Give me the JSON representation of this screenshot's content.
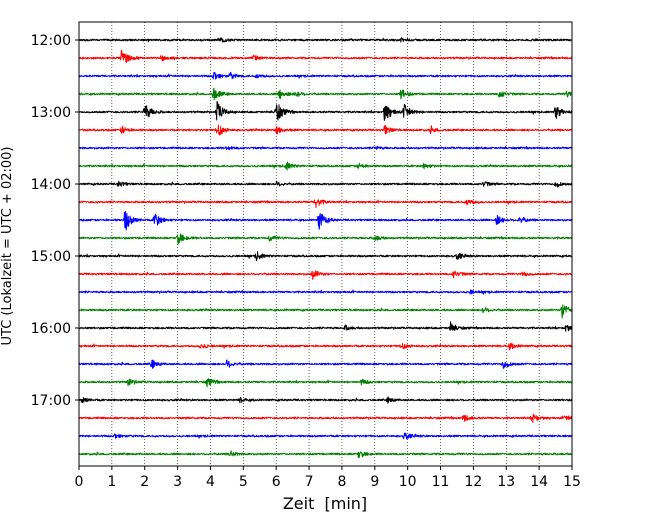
{
  "chart_data": {
    "type": "line",
    "title": "",
    "xlabel": "Zeit  [min]",
    "ylabel": "UTC (Lokalzeit = UTC + 02:00)",
    "xlim": [
      0,
      15
    ],
    "xticks": [
      0,
      1,
      2,
      3,
      4,
      5,
      6,
      7,
      8,
      9,
      10,
      11,
      12,
      13,
      14,
      15
    ],
    "yticks": [
      "12:00",
      "13:00",
      "14:00",
      "15:00",
      "16:00",
      "17:00"
    ],
    "minutes_per_row": 15,
    "start_time": "12:00",
    "row_count": 24,
    "color_cycle": [
      "#000000",
      "#ff0000",
      "#0000ff",
      "#008000"
    ],
    "grid": "vertical dotted at each minute",
    "legend": "none",
    "traces": [
      {
        "start": "12:00",
        "color": "#000000",
        "events": [
          [
            4.3,
            0.25
          ],
          [
            9.8,
            0.2
          ]
        ]
      },
      {
        "start": "12:15",
        "color": "#ff0000",
        "events": [
          [
            1.3,
            1.0
          ],
          [
            2.5,
            0.3
          ],
          [
            5.3,
            0.3
          ]
        ]
      },
      {
        "start": "12:30",
        "color": "#0000ff",
        "events": [
          [
            4.1,
            0.5
          ],
          [
            4.6,
            0.35
          ],
          [
            5.4,
            0.25
          ]
        ]
      },
      {
        "start": "12:45",
        "color": "#008000",
        "events": [
          [
            4.1,
            0.8
          ],
          [
            6.1,
            0.6
          ],
          [
            6.6,
            0.35
          ],
          [
            9.8,
            0.55
          ],
          [
            12.8,
            0.45
          ],
          [
            14.8,
            0.4
          ]
        ]
      },
      {
        "start": "13:00",
        "color": "#000000",
        "events": [
          [
            2.0,
            1.1
          ],
          [
            4.2,
            1.2
          ],
          [
            6.0,
            1.3
          ],
          [
            9.3,
            1.2
          ],
          [
            9.9,
            0.9
          ],
          [
            14.5,
            0.8
          ]
        ]
      },
      {
        "start": "13:15",
        "color": "#ff0000",
        "events": [
          [
            1.3,
            0.4
          ],
          [
            4.2,
            0.9
          ],
          [
            6.0,
            0.5
          ],
          [
            9.3,
            0.5
          ],
          [
            10.7,
            0.3
          ]
        ]
      },
      {
        "start": "13:30",
        "color": "#0000ff",
        "events": [
          [
            4.5,
            0.2
          ],
          [
            9.0,
            0.2
          ]
        ]
      },
      {
        "start": "13:45",
        "color": "#008000",
        "events": [
          [
            6.3,
            0.45
          ],
          [
            8.5,
            0.3
          ],
          [
            10.5,
            0.3
          ]
        ]
      },
      {
        "start": "14:00",
        "color": "#000000",
        "events": [
          [
            1.2,
            0.3
          ],
          [
            6.0,
            0.25
          ],
          [
            12.3,
            0.3
          ],
          [
            14.5,
            0.35
          ]
        ]
      },
      {
        "start": "14:15",
        "color": "#ff0000",
        "events": [
          [
            7.2,
            0.6
          ],
          [
            11.8,
            0.4
          ]
        ]
      },
      {
        "start": "14:30",
        "color": "#0000ff",
        "events": [
          [
            1.4,
            1.3
          ],
          [
            2.3,
            0.9
          ],
          [
            7.3,
            1.1
          ],
          [
            12.7,
            0.55
          ],
          [
            13.4,
            0.4
          ]
        ]
      },
      {
        "start": "14:45",
        "color": "#008000",
        "events": [
          [
            3.0,
            0.7
          ],
          [
            5.8,
            0.3
          ],
          [
            9.0,
            0.3
          ]
        ]
      },
      {
        "start": "15:00",
        "color": "#000000",
        "events": [
          [
            5.4,
            0.45
          ],
          [
            11.5,
            0.35
          ]
        ]
      },
      {
        "start": "15:15",
        "color": "#ff0000",
        "events": [
          [
            7.1,
            0.55
          ],
          [
            11.4,
            0.45
          ],
          [
            13.5,
            0.3
          ]
        ]
      },
      {
        "start": "15:30",
        "color": "#0000ff",
        "events": [
          [
            11.9,
            0.2
          ]
        ]
      },
      {
        "start": "15:45",
        "color": "#008000",
        "events": [
          [
            14.7,
            0.85
          ],
          [
            12.3,
            0.3
          ]
        ]
      },
      {
        "start": "16:00",
        "color": "#000000",
        "events": [
          [
            11.3,
            0.6
          ],
          [
            14.8,
            0.45
          ],
          [
            8.1,
            0.25
          ]
        ]
      },
      {
        "start": "16:15",
        "color": "#ff0000",
        "events": [
          [
            9.8,
            0.4
          ],
          [
            13.1,
            0.35
          ],
          [
            3.7,
            0.3
          ]
        ]
      },
      {
        "start": "16:30",
        "color": "#0000ff",
        "events": [
          [
            2.2,
            0.5
          ],
          [
            4.5,
            0.45
          ],
          [
            12.9,
            0.55
          ]
        ]
      },
      {
        "start": "16:45",
        "color": "#008000",
        "events": [
          [
            1.5,
            0.4
          ],
          [
            3.9,
            0.45
          ],
          [
            8.6,
            0.3
          ]
        ]
      },
      {
        "start": "17:00",
        "color": "#000000",
        "events": [
          [
            0.1,
            0.3
          ],
          [
            4.9,
            0.25
          ],
          [
            9.4,
            0.3
          ]
        ]
      },
      {
        "start": "17:15",
        "color": "#ff0000",
        "events": [
          [
            11.7,
            0.35
          ],
          [
            13.8,
            0.5
          ],
          [
            14.8,
            0.3
          ]
        ]
      },
      {
        "start": "17:30",
        "color": "#0000ff",
        "events": [
          [
            1.1,
            0.25
          ],
          [
            9.9,
            0.4
          ]
        ]
      },
      {
        "start": "17:45",
        "color": "#008000",
        "events": [
          [
            4.6,
            0.35
          ],
          [
            8.5,
            0.45
          ]
        ]
      }
    ]
  }
}
